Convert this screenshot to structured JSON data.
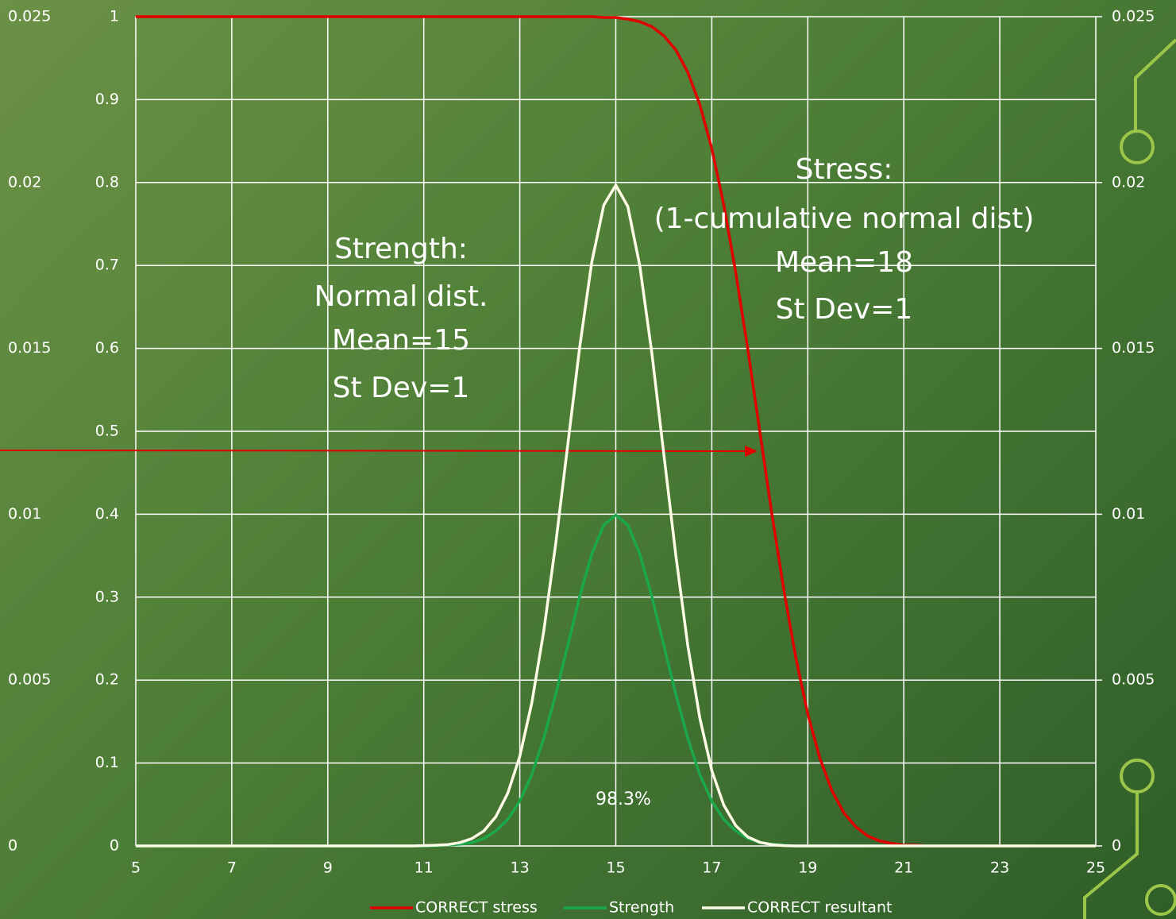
{
  "chart_data": {
    "type": "line",
    "annotations": [
      [
        "Strength:",
        "Normal dist.",
        "Mean=15",
        "St Dev=1"
      ],
      [
        "Stress:",
        "(1-cumulative normal dist)",
        "Mean=18",
        "St Dev=1"
      ],
      "98.3%"
    ],
    "x": [
      5,
      5.25,
      5.5,
      5.75,
      6,
      6.25,
      6.5,
      6.75,
      7,
      7.25,
      7.5,
      7.75,
      8,
      8.25,
      8.5,
      8.75,
      9,
      9.25,
      9.5,
      9.75,
      10,
      10.25,
      10.5,
      10.75,
      11,
      11.25,
      11.5,
      11.75,
      12,
      12.25,
      12.5,
      12.75,
      13,
      13.25,
      13.5,
      13.75,
      14,
      14.25,
      14.5,
      14.75,
      15,
      15.25,
      15.5,
      15.75,
      16,
      16.25,
      16.5,
      16.75,
      17,
      17.25,
      17.5,
      17.75,
      18,
      18.25,
      18.5,
      18.75,
      19,
      19.25,
      19.5,
      19.75,
      20,
      20.25,
      20.5,
      20.75,
      21,
      21.25,
      21.5,
      21.75,
      22,
      22.25,
      22.5,
      22.75,
      23,
      23.25,
      23.5,
      23.75,
      24,
      24.25,
      24.5,
      24.75,
      25
    ],
    "series": [
      {
        "name": "CORRECT stress",
        "color": "#e00000",
        "values": [
          1,
          1,
          1,
          1,
          1,
          1,
          1,
          1,
          1,
          1,
          1,
          1,
          1,
          1,
          1,
          1,
          1,
          1,
          1,
          1,
          1,
          1,
          1,
          1,
          1,
          1,
          1,
          1,
          1,
          1,
          1,
          1,
          1,
          1,
          1,
          1,
          1,
          1,
          1,
          0.999,
          0.999,
          0.997,
          0.994,
          0.988,
          0.977,
          0.96,
          0.933,
          0.894,
          0.841,
          0.773,
          0.691,
          0.599,
          0.5,
          0.401,
          0.309,
          0.227,
          0.159,
          0.106,
          0.067,
          0.04,
          0.023,
          0.012,
          0.006,
          0.003,
          0.001,
          0.001,
          0,
          0,
          0,
          0,
          0,
          0,
          0,
          0,
          0,
          0,
          0,
          0,
          0,
          0,
          0
        ]
      },
      {
        "name": "Strength",
        "color": "#1aa84a",
        "values": [
          0,
          0,
          0,
          0,
          0,
          0,
          0,
          0,
          0,
          0,
          0,
          0,
          0,
          0,
          0,
          0,
          0,
          0,
          0,
          0,
          0,
          0,
          0,
          0,
          0,
          0,
          0.001,
          0.002,
          0.004,
          0.009,
          0.018,
          0.032,
          0.054,
          0.086,
          0.13,
          0.183,
          0.242,
          0.301,
          0.352,
          0.387,
          0.399,
          0.387,
          0.352,
          0.301,
          0.242,
          0.183,
          0.13,
          0.086,
          0.054,
          0.032,
          0.018,
          0.009,
          0.004,
          0.002,
          0.001,
          0,
          0,
          0,
          0,
          0,
          0,
          0,
          0,
          0,
          0,
          0,
          0,
          0,
          0,
          0,
          0,
          0,
          0,
          0,
          0,
          0,
          0,
          0,
          0,
          0,
          0
        ]
      },
      {
        "name": "CORRECT resultant",
        "color": "#fffbe6",
        "axis": "y2",
        "values": [
          0,
          0,
          0,
          0,
          0,
          0,
          0,
          0,
          0,
          0,
          0,
          0,
          0,
          0,
          0,
          0,
          0,
          0,
          0,
          0,
          0,
          0,
          0,
          0,
          1e-05,
          2e-05,
          4e-05,
          0.0001,
          0.00022,
          0.00045,
          0.00088,
          0.00159,
          0.0027,
          0.00431,
          0.00648,
          0.00913,
          0.0121,
          0.01506,
          0.0176,
          0.01932,
          0.01992,
          0.01928,
          0.01749,
          0.01487,
          0.01182,
          0.00877,
          0.00604,
          0.00386,
          0.00227,
          0.00123,
          0.00061,
          0.00027,
          0.00011,
          4e-05,
          1e-05,
          0,
          0,
          0,
          0,
          0,
          0,
          0,
          0,
          0,
          0,
          0,
          0,
          0,
          0,
          0,
          0,
          0,
          0,
          0,
          0,
          0,
          0,
          0,
          0,
          0,
          0
        ]
      }
    ],
    "xlim": [
      5,
      25
    ],
    "xticks": [
      5,
      7,
      9,
      11,
      13,
      15,
      17,
      19,
      21,
      23,
      25
    ],
    "ylim": [
      0,
      1
    ],
    "yticks": [
      0,
      0.1,
      0.2,
      0.3,
      0.4,
      0.5,
      0.6,
      0.7,
      0.8,
      0.9,
      1
    ],
    "y2lim": [
      0,
      0.025
    ],
    "y2ticks": [
      0,
      0.005,
      0.01,
      0.015,
      0.02,
      0.025
    ],
    "grid": true,
    "legend": "bottom"
  }
}
